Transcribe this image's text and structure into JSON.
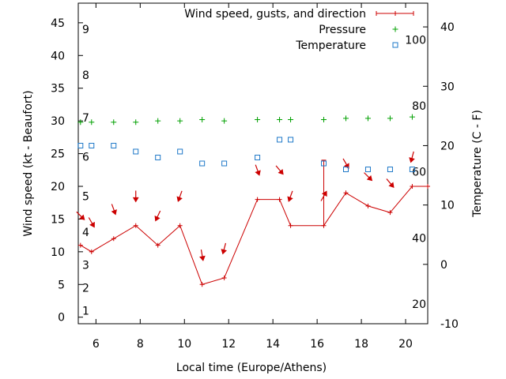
{
  "chart_data": {
    "type": "line",
    "xlabel": "Local time (Europe/Athens)",
    "ylabel_left": "Wind speed (kt - Beaufort)",
    "ylabel_right": "Temperature (C - F)",
    "xlim": [
      5.2,
      21.0
    ],
    "ylim_left": [
      -1,
      48
    ],
    "ylim_right_celsius": [
      -10,
      44
    ],
    "x_ticks": [
      6,
      8,
      10,
      12,
      14,
      16,
      18,
      20
    ],
    "y_ticks_left": [
      0,
      5,
      10,
      15,
      20,
      25,
      30,
      35,
      40,
      45
    ],
    "y_ticks_right": [
      -10,
      0,
      10,
      20,
      30,
      40
    ],
    "beaufort_labels": [
      {
        "text": "1",
        "kt": 1
      },
      {
        "text": "2",
        "kt": 4.5
      },
      {
        "text": "3",
        "kt": 8
      },
      {
        "text": "4",
        "kt": 13
      },
      {
        "text": "5",
        "kt": 18.5
      },
      {
        "text": "6",
        "kt": 24.5
      },
      {
        "text": "7",
        "kt": 30.5
      },
      {
        "text": "8",
        "kt": 37
      },
      {
        "text": "9",
        "kt": 44
      }
    ],
    "fahrenheit_labels": [
      {
        "text": "20",
        "celsius": -6.7
      },
      {
        "text": "40",
        "celsius": 4.4
      },
      {
        "text": "60",
        "celsius": 15.6
      },
      {
        "text": "80",
        "celsius": 26.7
      },
      {
        "text": "100",
        "celsius": 37.8
      }
    ],
    "legend": [
      {
        "label": "Wind speed, gusts, and direction",
        "color": "#cc0000",
        "marker": "line-plus"
      },
      {
        "label": "Pressure",
        "color": "#00a000",
        "marker": "plus"
      },
      {
        "label": "Temperature",
        "color": "#1e78c8",
        "marker": "square"
      }
    ],
    "series": [
      {
        "name": "Wind speed, gusts, and direction",
        "color": "#cc0000",
        "points": [
          {
            "x": 5.3,
            "y": 11,
            "dir": 315
          },
          {
            "x": 5.8,
            "y": 10,
            "dir": 330
          },
          {
            "x": 6.8,
            "y": 12,
            "dir": 340
          },
          {
            "x": 7.8,
            "y": 14,
            "dir": 0
          },
          {
            "x": 8.8,
            "y": 11,
            "dir": 25
          },
          {
            "x": 9.8,
            "y": 14,
            "dir": 20
          },
          {
            "x": 10.8,
            "y": 5,
            "dir": 350
          },
          {
            "x": 11.8,
            "y": 6,
            "dir": 15
          },
          {
            "x": 13.3,
            "y": 18,
            "dir": 340
          },
          {
            "x": 14.3,
            "y": 18,
            "dir": 320
          },
          {
            "x": 14.8,
            "y": 14,
            "dir": 20
          },
          {
            "x": 16.3,
            "y": 14,
            "dir": 210
          },
          {
            "x": 17.3,
            "y": 19,
            "dir": 330
          },
          {
            "x": 18.3,
            "y": 17,
            "dir": 315
          },
          {
            "x": 19.3,
            "y": 16,
            "dir": 320
          },
          {
            "x": 20.3,
            "y": 20,
            "dir": 15
          },
          {
            "x": 21.0,
            "y": 20,
            "dir": null
          }
        ],
        "gusts": [
          {
            "x": 16.3,
            "y": 24
          }
        ]
      },
      {
        "name": "Pressure",
        "color": "#00a000",
        "x": [
          5.3,
          5.8,
          6.8,
          7.8,
          8.8,
          9.8,
          10.8,
          11.8,
          13.3,
          14.3,
          14.8,
          16.3,
          17.3,
          18.3,
          19.3,
          20.3
        ],
        "y_kt_scale": [
          29.8,
          29.8,
          29.8,
          29.8,
          30,
          30,
          30.2,
          30,
          30.2,
          30.2,
          30.2,
          30.2,
          30.4,
          30.4,
          30.4,
          30.6
        ]
      },
      {
        "name": "Temperature",
        "color": "#1e78c8",
        "x": [
          5.3,
          5.8,
          6.8,
          7.8,
          8.8,
          9.8,
          10.8,
          11.8,
          13.3,
          14.3,
          14.8,
          16.3,
          17.3,
          18.3,
          19.3,
          20.3
        ],
        "y_celsius": [
          20,
          20,
          20,
          19,
          18,
          19,
          17,
          17,
          18,
          21,
          21,
          17,
          16,
          16,
          16,
          16
        ]
      }
    ]
  }
}
